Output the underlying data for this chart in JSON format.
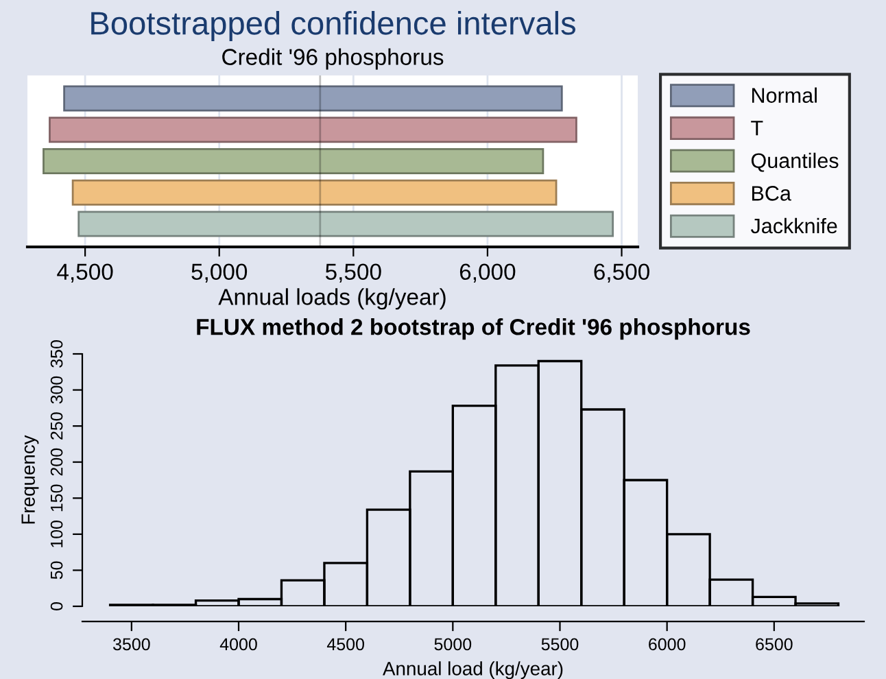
{
  "chart_data": [
    {
      "type": "histogram",
      "title": "FLUX method 2 bootstrap of Credit '96 phosphorus",
      "xlabel": "Annual load (kg/year)",
      "ylabel": "Frequency",
      "bins": [
        3400,
        3600,
        3800,
        4000,
        4200,
        4400,
        4600,
        4800,
        5000,
        5200,
        5400,
        5600,
        5800,
        6000,
        6200,
        6400,
        6600,
        6800
      ],
      "values": [
        2,
        2,
        8,
        10,
        36,
        60,
        134,
        187,
        278,
        334,
        340,
        273,
        175,
        100,
        37,
        13,
        4
      ],
      "color": "#000000",
      "xlim": [
        3270,
        6920
      ],
      "xticks": [
        3500,
        4000,
        4500,
        5000,
        5500,
        6000,
        6500
      ],
      "ylim": [
        0,
        350
      ],
      "yticks": [
        0,
        50,
        100,
        150,
        200,
        250,
        300,
        350
      ]
    },
    {
      "type": "bar",
      "orientation": "horizontal",
      "title": "Bootstrapped confidence intervals",
      "subtitle": "Credit '96 phosphorus",
      "xlabel": "Annual loads (kg/year)",
      "categories": [
        null,
        null,
        null,
        null,
        null
      ],
      "series": [
        {
          "name": "Normal",
          "color": "#919eb8",
          "base": [
            4422,
            null,
            null,
            null,
            null
          ],
          "values": [
            1855,
            null,
            null,
            null,
            null
          ]
        },
        {
          "name": "T",
          "color": "#c8979c",
          "base": [
            null,
            4368,
            null,
            null,
            null
          ],
          "values": [
            null,
            1963,
            null,
            null,
            null
          ]
        },
        {
          "name": "Quantiles",
          "color": "#a8b994",
          "base": [
            null,
            null,
            4345,
            null,
            null
          ],
          "values": [
            null,
            null,
            1862,
            null,
            null
          ]
        },
        {
          "name": "BCa",
          "color": "#f0c080",
          "base": [
            null,
            null,
            null,
            4454,
            null
          ],
          "values": [
            null,
            null,
            null,
            1802,
            null
          ]
        },
        {
          "name": "Jackknife",
          "color": "#b5c8c0",
          "base": [
            null,
            null,
            null,
            null,
            4476
          ],
          "values": [
            null,
            null,
            null,
            null,
            1991
          ]
        }
      ],
      "ref_lines": [
        {
          "axis": "x",
          "value": 5376
        }
      ],
      "xlim": [
        4285,
        6560
      ],
      "xticks": [
        {
          "value": 4500,
          "label": "4,500"
        },
        {
          "value": 5000,
          "label": "5,000"
        },
        {
          "value": 5500,
          "label": "5,500"
        },
        {
          "value": 6000,
          "label": "6,000"
        },
        {
          "value": 6500,
          "label": "6,500"
        }
      ],
      "tick_labels": "x",
      "grid": "x",
      "legend": "right"
    }
  ]
}
